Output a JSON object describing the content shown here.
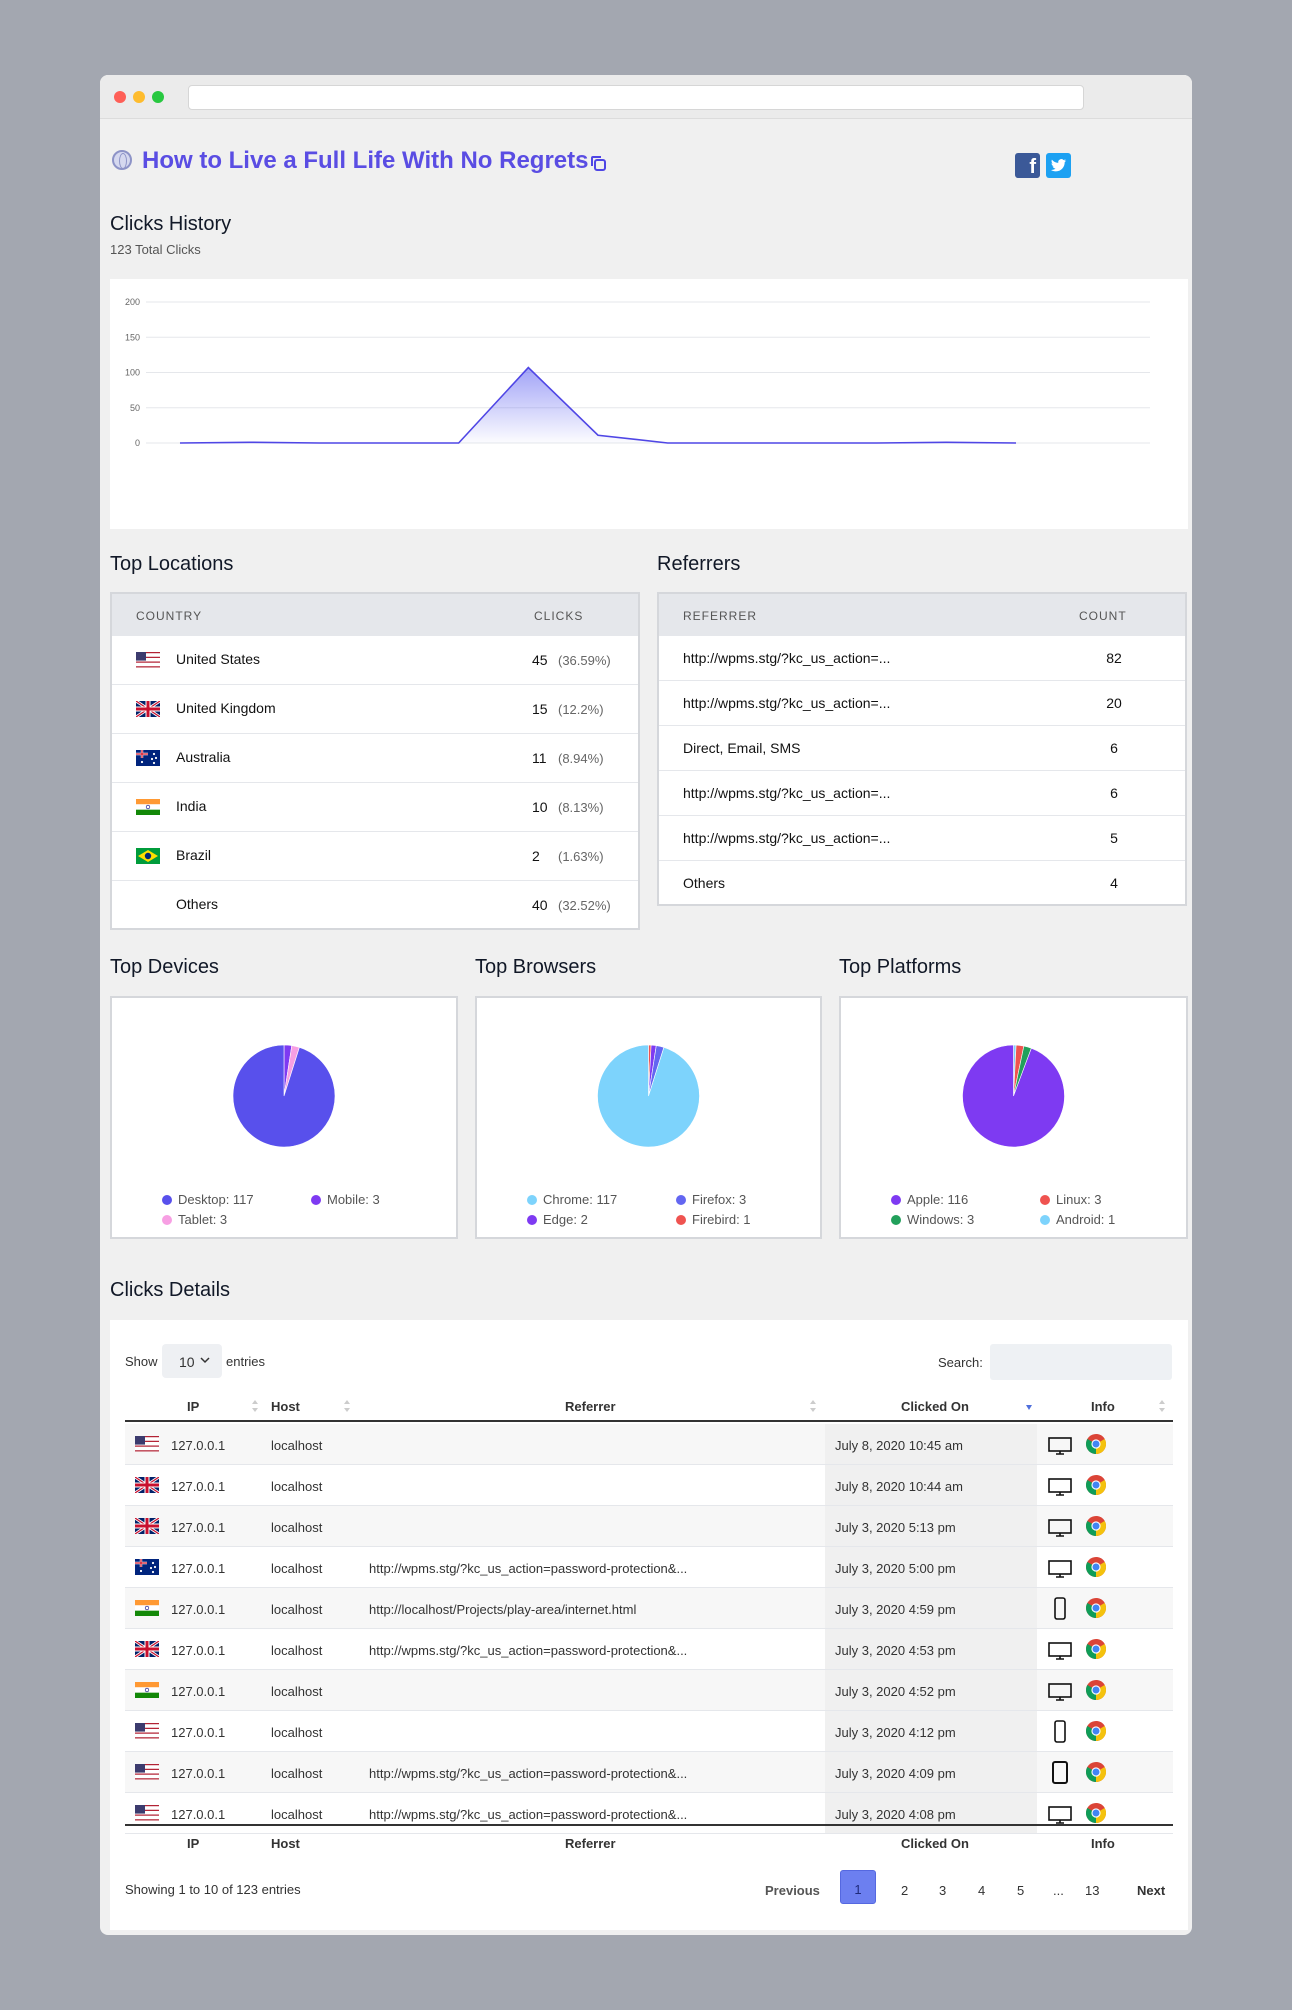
{
  "page": {
    "title": "How to Live a Full Life With No Regrets"
  },
  "clicks_history": {
    "heading": "Clicks History",
    "total": "123 Total Clicks",
    "y_ticks": [
      "200",
      "150",
      "100",
      "50",
      "0"
    ]
  },
  "chart_data": [
    {
      "type": "area",
      "title": "Clicks History",
      "x": [
        1,
        2,
        3,
        4,
        5,
        6,
        7,
        8,
        9,
        10,
        11,
        12,
        13
      ],
      "values": [
        0,
        1,
        0,
        0,
        0,
        107,
        11,
        0,
        0,
        0,
        0,
        1,
        0
      ],
      "ylim": [
        0,
        200
      ],
      "grid": true,
      "color": "#4f46e5"
    },
    {
      "type": "pie",
      "title": "Top Devices",
      "labels": [
        "Desktop",
        "Mobile",
        "Tablet"
      ],
      "values": [
        117,
        3,
        3
      ],
      "colors": [
        "#5850ec",
        "#7e3af2",
        "#f79fe3"
      ]
    },
    {
      "type": "pie",
      "title": "Top Browsers",
      "labels": [
        "Chrome",
        "Firefox",
        "Edge",
        "Firebird"
      ],
      "values": [
        117,
        3,
        2,
        1
      ],
      "colors": [
        "#7dd3fc",
        "#6366f1",
        "#7e3af2",
        "#ef5350"
      ]
    },
    {
      "type": "pie",
      "title": "Top Platforms",
      "labels": [
        "Apple",
        "Linux",
        "Windows",
        "Android"
      ],
      "values": [
        116,
        3,
        3,
        1
      ],
      "colors": [
        "#7e3af2",
        "#ef5350",
        "#22a05b",
        "#7dd3fc"
      ]
    }
  ],
  "locations": {
    "heading": "Top Locations",
    "col_country": "COUNTRY",
    "col_clicks": "CLICKS",
    "rows": [
      {
        "flag": "us",
        "country": "United States",
        "clicks": "45",
        "pct": "(36.59%)"
      },
      {
        "flag": "uk",
        "country": "United Kingdom",
        "clicks": "15",
        "pct": "(12.2%)"
      },
      {
        "flag": "au",
        "country": "Australia",
        "clicks": "11",
        "pct": "(8.94%)"
      },
      {
        "flag": "in",
        "country": "India",
        "clicks": "10",
        "pct": "(8.13%)"
      },
      {
        "flag": "br",
        "country": "Brazil",
        "clicks": "2",
        "pct": "(1.63%)"
      },
      {
        "flag": "",
        "country": "Others",
        "clicks": "40",
        "pct": "(32.52%)"
      }
    ]
  },
  "referrers": {
    "heading": "Referrers",
    "col_referrer": "REFERRER",
    "col_count": "COUNT",
    "rows": [
      {
        "referrer": "http://wpms.stg/?kc_us_action=...",
        "count": "82"
      },
      {
        "referrer": "http://wpms.stg/?kc_us_action=...",
        "count": "20"
      },
      {
        "referrer": "Direct, Email, SMS",
        "count": "6"
      },
      {
        "referrer": "http://wpms.stg/?kc_us_action=...",
        "count": "6"
      },
      {
        "referrer": "http://wpms.stg/?kc_us_action=...",
        "count": "5"
      },
      {
        "referrer": "Others",
        "count": "4"
      }
    ]
  },
  "devices": {
    "heading": "Top Devices",
    "legend": [
      "Desktop: 117",
      "Mobile: 3",
      "Tablet: 3"
    ]
  },
  "browsers": {
    "heading": "Top Browsers",
    "legend": [
      "Chrome: 117",
      "Firefox: 3",
      "Edge: 2",
      "Firebird: 1"
    ]
  },
  "platforms": {
    "heading": "Top Platforms",
    "legend": [
      "Apple: 116",
      "Linux: 3",
      "Windows: 3",
      "Android: 1"
    ]
  },
  "details": {
    "heading": "Clicks Details",
    "show_label": "Show",
    "entries_value": "10",
    "entries_label": "entries",
    "search_label": "Search:",
    "search_value": "",
    "columns": [
      "IP",
      "Host",
      "Referrer",
      "Clicked On",
      "Info"
    ],
    "rows": [
      {
        "flag": "us",
        "ip": "127.0.0.1",
        "host": "localhost",
        "referrer": "",
        "clicked_on": "July 8, 2020 10:45 am",
        "device": "desktop"
      },
      {
        "flag": "uk",
        "ip": "127.0.0.1",
        "host": "localhost",
        "referrer": "",
        "clicked_on": "July 8, 2020 10:44 am",
        "device": "desktop"
      },
      {
        "flag": "uk",
        "ip": "127.0.0.1",
        "host": "localhost",
        "referrer": "",
        "clicked_on": "July 3, 2020 5:13 pm",
        "device": "desktop"
      },
      {
        "flag": "au",
        "ip": "127.0.0.1",
        "host": "localhost",
        "referrer": "http://wpms.stg/?kc_us_action=password-protection&...",
        "clicked_on": "July 3, 2020 5:00 pm",
        "device": "desktop"
      },
      {
        "flag": "in",
        "ip": "127.0.0.1",
        "host": "localhost",
        "referrer": "http://localhost/Projects/play-area/internet.html",
        "clicked_on": "July 3, 2020 4:59 pm",
        "device": "mobile"
      },
      {
        "flag": "uk",
        "ip": "127.0.0.1",
        "host": "localhost",
        "referrer": "http://wpms.stg/?kc_us_action=password-protection&...",
        "clicked_on": "July 3, 2020 4:53 pm",
        "device": "desktop"
      },
      {
        "flag": "in",
        "ip": "127.0.0.1",
        "host": "localhost",
        "referrer": "",
        "clicked_on": "July 3, 2020 4:52 pm",
        "device": "desktop"
      },
      {
        "flag": "us",
        "ip": "127.0.0.1",
        "host": "localhost",
        "referrer": "",
        "clicked_on": "July 3, 2020 4:12 pm",
        "device": "mobile"
      },
      {
        "flag": "us",
        "ip": "127.0.0.1",
        "host": "localhost",
        "referrer": "http://wpms.stg/?kc_us_action=password-protection&...",
        "clicked_on": "July 3, 2020 4:09 pm",
        "device": "tablet"
      },
      {
        "flag": "us",
        "ip": "127.0.0.1",
        "host": "localhost",
        "referrer": "http://wpms.stg/?kc_us_action=password-protection&...",
        "clicked_on": "July 3, 2020 4:08 pm",
        "device": "desktop"
      }
    ],
    "summary": "Showing 1 to 10 of 123 entries",
    "pagination": {
      "previous": "Previous",
      "pages": [
        "1",
        "2",
        "3",
        "4",
        "5",
        "...",
        "13"
      ],
      "current": "1",
      "next": "Next"
    }
  }
}
